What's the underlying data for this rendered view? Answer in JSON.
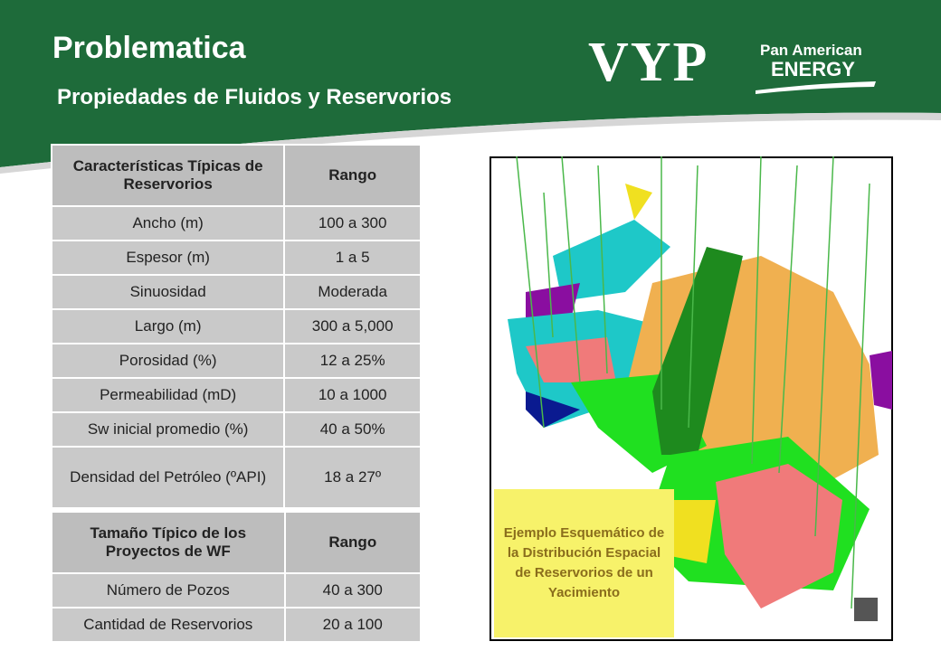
{
  "header": {
    "title": "Problematica",
    "subtitle": "Propiedades de Fluidos y Reservorios"
  },
  "logos": {
    "vyp": "VYP",
    "pan_american": "Pan American",
    "energy": "ENERGY"
  },
  "table1": {
    "header": [
      "Características Típicas de Reservorios",
      "Rango"
    ],
    "rows": [
      [
        "Ancho (m)",
        "100 a 300"
      ],
      [
        "Espesor (m)",
        "1 a 5"
      ],
      [
        "Sinuosidad",
        "Moderada"
      ],
      [
        "Largo (m)",
        "300 a 5,000"
      ],
      [
        "Porosidad (%)",
        "12 a 25%"
      ],
      [
        "Permeabilidad (mD)",
        "10 a 1000"
      ],
      [
        "Sw inicial promedio (%)",
        "40 a 50%"
      ],
      [
        "Densidad del Petróleo (ºAPI)",
        "18 a 27º"
      ]
    ]
  },
  "table2": {
    "header": [
      "Tamaño Típico de los Proyectos de WF",
      "Rango"
    ],
    "rows": [
      [
        "Número de Pozos",
        "40 a 300"
      ],
      [
        "Cantidad de Reservorios",
        "20 a 100"
      ]
    ]
  },
  "caption": "Ejemplo Esquemático de la Distribución Espacial de Reservorios de un Yacimiento"
}
